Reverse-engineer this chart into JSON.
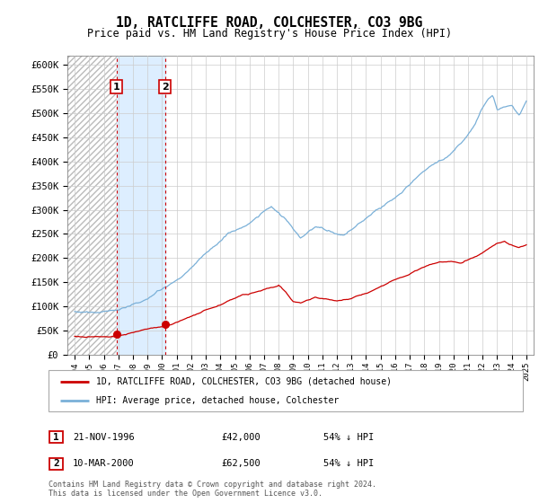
{
  "title": "1D, RATCLIFFE ROAD, COLCHESTER, CO3 9BG",
  "subtitle": "Price paid vs. HM Land Registry's House Price Index (HPI)",
  "legend_line1": "1D, RATCLIFFE ROAD, COLCHESTER, CO3 9BG (detached house)",
  "legend_line2": "HPI: Average price, detached house, Colchester",
  "footnote": "Contains HM Land Registry data © Crown copyright and database right 2024.\nThis data is licensed under the Open Government Licence v3.0.",
  "table_entries": [
    {
      "num": "1",
      "date": "21-NOV-1996",
      "price": "£42,000",
      "hpi": "54% ↓ HPI"
    },
    {
      "num": "2",
      "date": "10-MAR-2000",
      "price": "£62,500",
      "hpi": "54% ↓ HPI"
    }
  ],
  "red_line_color": "#cc0000",
  "blue_line_color": "#7ab0d8",
  "sale1_x": 1996.88,
  "sale1_y": 42000,
  "sale2_x": 2000.19,
  "sale2_y": 62500,
  "ylim": [
    0,
    620000
  ],
  "xlim": [
    1993.5,
    2025.5
  ],
  "yticks": [
    0,
    50000,
    100000,
    150000,
    200000,
    250000,
    300000,
    350000,
    400000,
    450000,
    500000,
    550000,
    600000
  ],
  "hatch_color": "#bbbbbb",
  "shade_color": "#ddeeff",
  "grid_color": "#cccccc",
  "bg_color": "#ffffff"
}
